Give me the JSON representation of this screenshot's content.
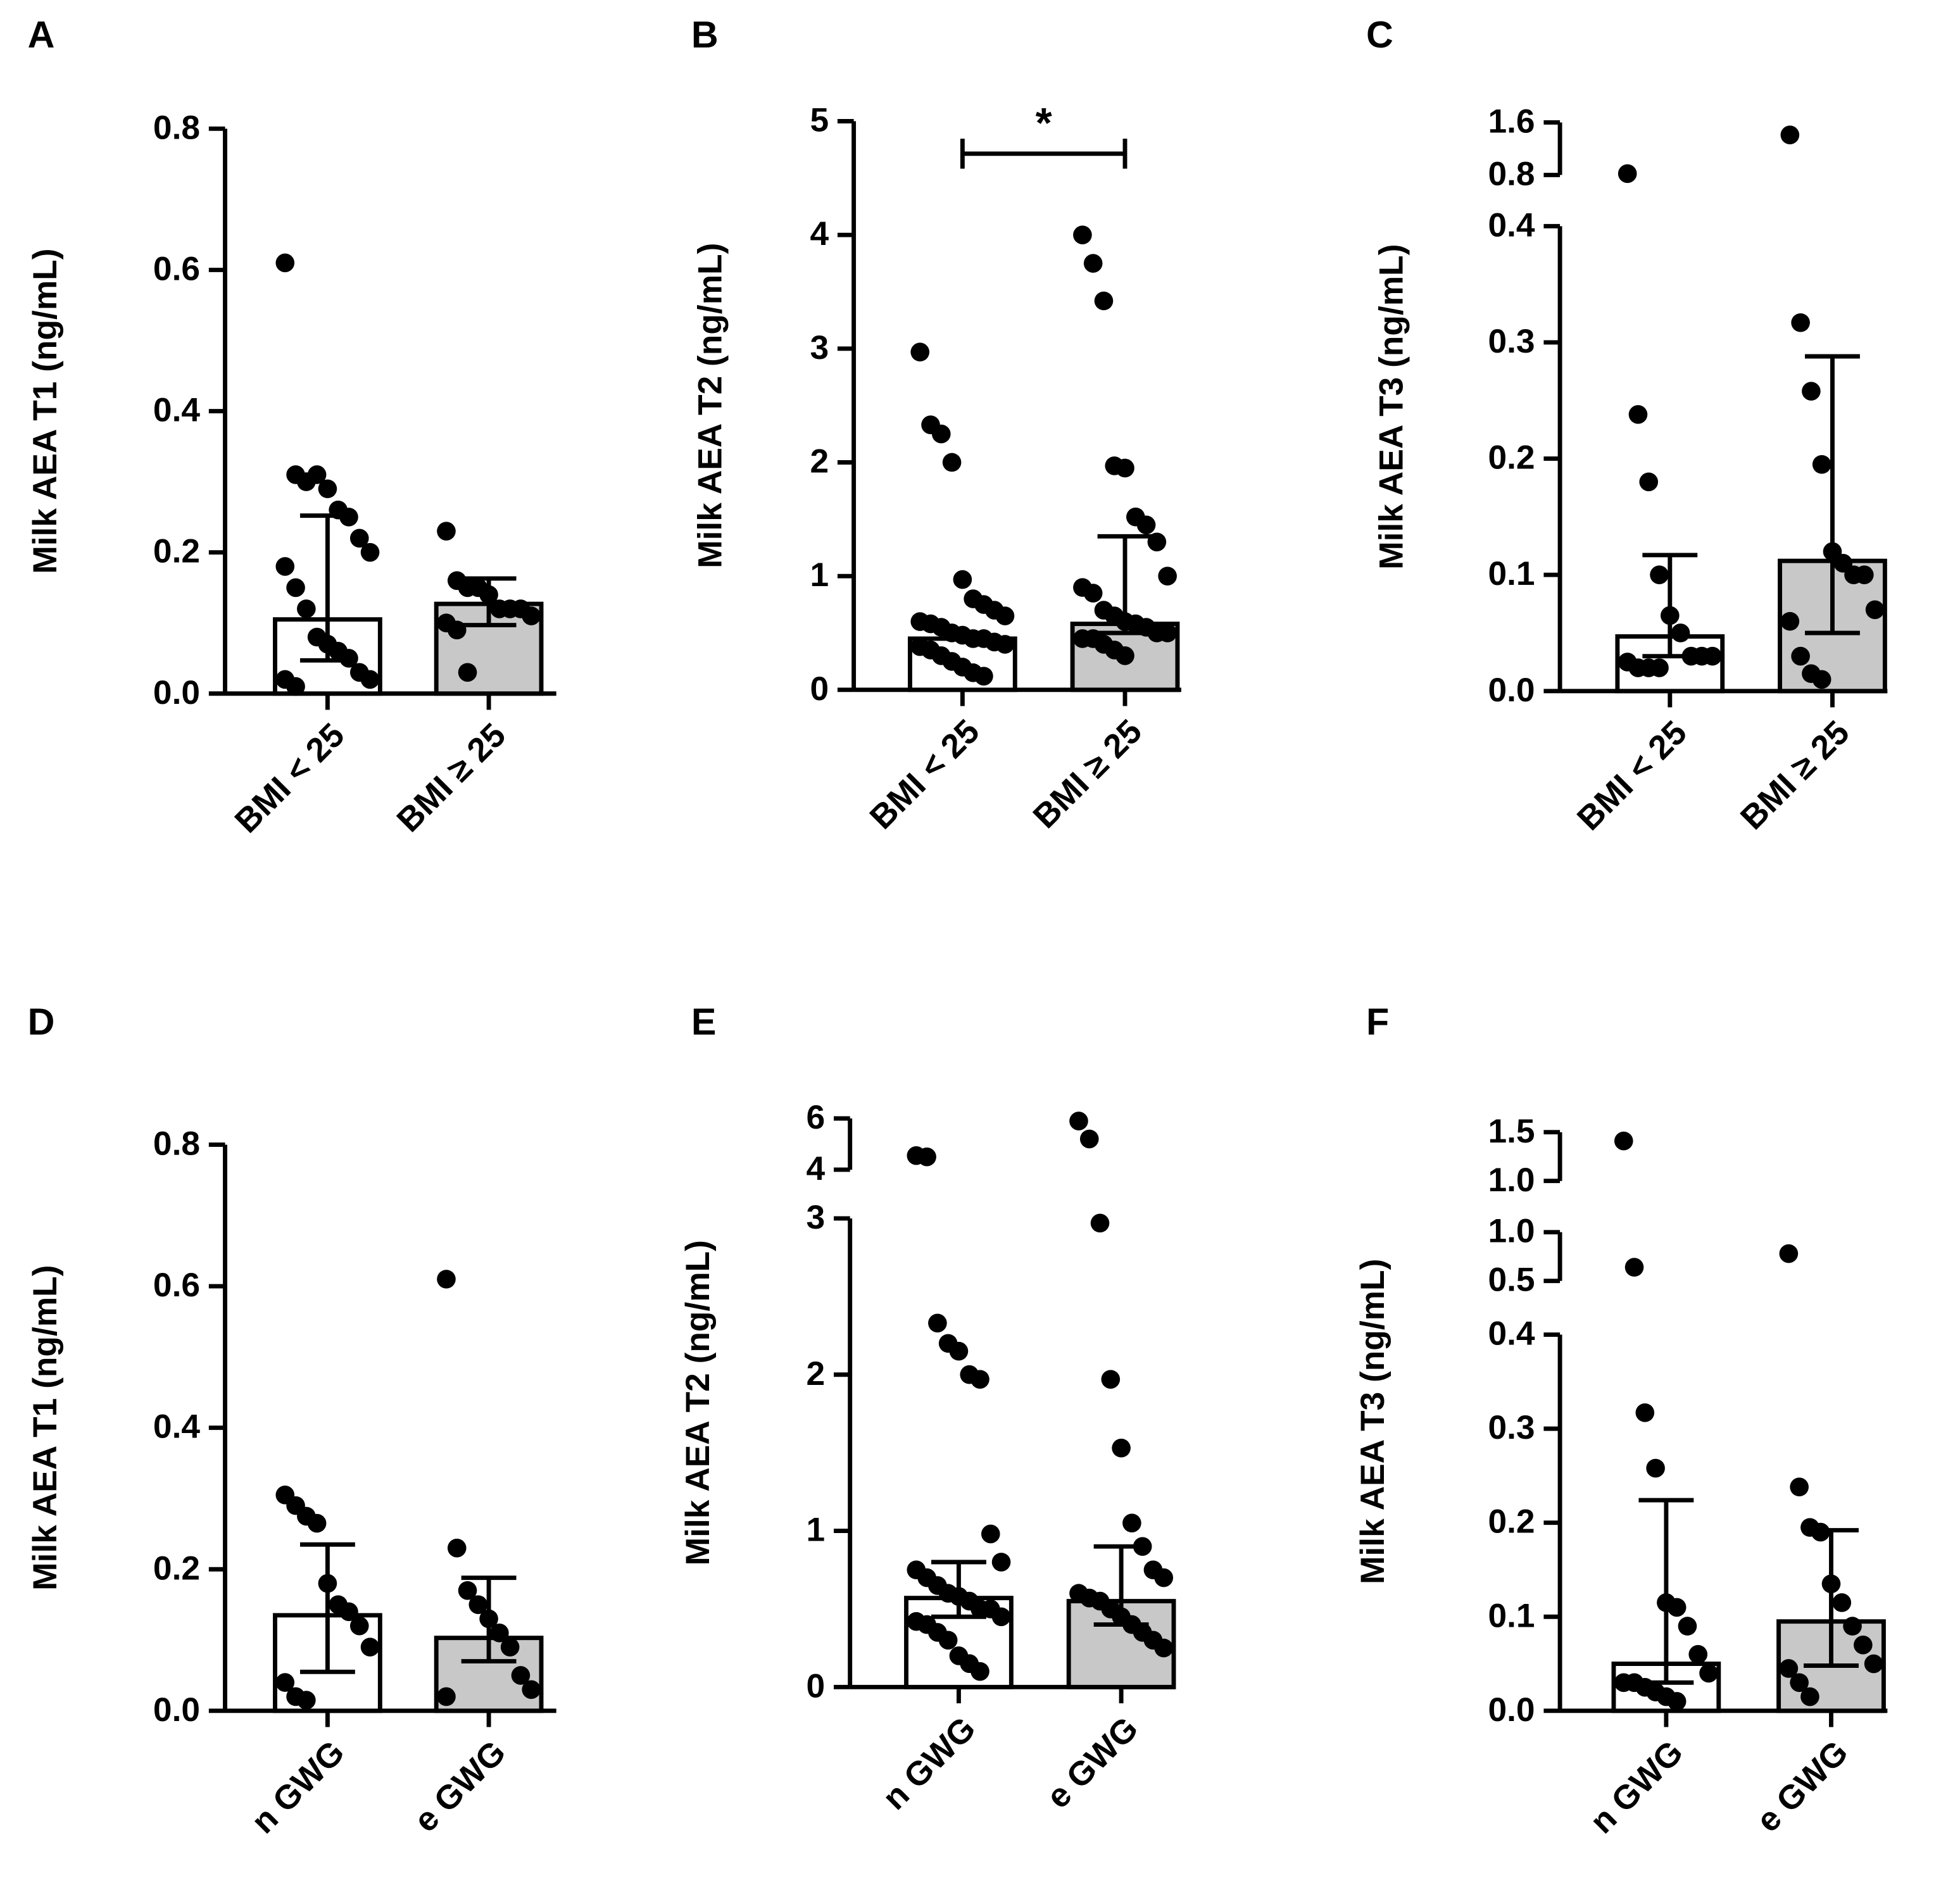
{
  "chart_data": [
    {
      "type": "bar",
      "panel": "A",
      "ylabel": "Milk AEA T1 (ng/mL)",
      "categories": [
        "BMI < 25",
        "BMI ≥ 25"
      ],
      "colors": [
        "#ffffff",
        "#c8c8c8"
      ],
      "values": [
        0.105,
        0.127
      ],
      "error_low": [
        0.047,
        0.097
      ],
      "error_high": [
        0.252,
        0.163
      ],
      "points": [
        [
          0.61,
          0.31,
          0.3,
          0.31,
          0.29,
          0.26,
          0.25,
          0.22,
          0.2,
          0.18,
          0.15,
          0.12,
          0.08,
          0.07,
          0.06,
          0.05,
          0.03,
          0.02,
          0.02,
          0.01
        ],
        [
          0.23,
          0.16,
          0.15,
          0.15,
          0.14,
          0.12,
          0.12,
          0.12,
          0.11,
          0.1,
          0.09,
          0.03
        ]
      ],
      "axis_segments": [
        {
          "ylim": [
            0,
            0.8
          ],
          "yticks": [
            {
              "value": 0,
              "label": "0.0"
            },
            0.2,
            0.4,
            0.6,
            0.8
          ]
        }
      ]
    },
    {
      "type": "bar",
      "panel": "B",
      "ylabel": "Milk AEA T2 (ng/mL)",
      "categories": [
        "BMI < 25",
        "BMI ≥ 25"
      ],
      "colors": [
        "#ffffff",
        "#c8c8c8"
      ],
      "values": [
        0.45,
        0.58
      ],
      "error_low": [
        null,
        0.5
      ],
      "error_high": [
        null,
        1.35
      ],
      "points": [
        [
          2.97,
          2.33,
          2.25,
          2.0,
          0.97,
          0.8,
          0.75,
          0.7,
          0.65,
          0.6,
          0.58,
          0.55,
          0.5,
          0.48,
          0.45,
          0.45,
          0.42,
          0.4,
          0.38,
          0.35,
          0.3,
          0.25,
          0.2,
          0.15,
          0.12
        ],
        [
          4.0,
          3.75,
          3.42,
          1.97,
          1.95,
          1.52,
          1.45,
          1.3,
          1.0,
          0.9,
          0.85,
          0.7,
          0.65,
          0.6,
          0.58,
          0.55,
          0.5,
          0.5,
          0.45,
          0.45,
          0.4,
          0.35,
          0.3
        ]
      ],
      "axis_segments": [
        {
          "ylim": [
            0,
            5
          ],
          "yticks": [
            0,
            1,
            2,
            3,
            4,
            5
          ]
        }
      ],
      "annotations": [
        "*"
      ]
    },
    {
      "type": "bar",
      "panel": "C",
      "ylabel": "Milk AEA T3 (ng/mL)",
      "categories": [
        "BMI < 25",
        "BMI ≥ 25"
      ],
      "colors": [
        "#ffffff",
        "#c8c8c8"
      ],
      "values": [
        0.047,
        0.112
      ],
      "error_low": [
        0.03,
        0.05
      ],
      "error_high": [
        0.117,
        0.288
      ],
      "points": [
        [
          0.82,
          0.238,
          0.18,
          0.1,
          0.065,
          0.05,
          0.03,
          0.03,
          0.03,
          0.025,
          0.02,
          0.02,
          0.02
        ],
        [
          1.41,
          0.317,
          0.258,
          0.195,
          0.12,
          0.11,
          0.1,
          0.1,
          0.07,
          0.06,
          0.03,
          0.015,
          0.01
        ]
      ],
      "axis_segments": [
        {
          "ylim": [
            0,
            0.4
          ],
          "yticks": [
            {
              "value": 0,
              "label": "0.0"
            },
            0.1,
            0.2,
            0.3,
            0.4
          ]
        },
        {
          "ylim": [
            0.8,
            1.6
          ],
          "yticks": [
            0.8,
            1.6
          ]
        }
      ]
    },
    {
      "type": "bar",
      "panel": "D",
      "ylabel": "Milk AEA T1 (ng/mL)",
      "categories": [
        "n GWG",
        "e GWG"
      ],
      "colors": [
        "#ffffff",
        "#c8c8c8"
      ],
      "values": [
        0.135,
        0.103
      ],
      "error_low": [
        0.055,
        0.07
      ],
      "error_high": [
        0.235,
        0.188
      ],
      "points": [
        [
          0.305,
          0.29,
          0.275,
          0.265,
          0.18,
          0.15,
          0.14,
          0.12,
          0.09,
          0.04,
          0.02,
          0.015
        ],
        [
          0.61,
          0.23,
          0.17,
          0.15,
          0.13,
          0.11,
          0.09,
          0.05,
          0.03,
          0.02
        ]
      ],
      "axis_segments": [
        {
          "ylim": [
            0,
            0.8
          ],
          "yticks": [
            {
              "value": 0,
              "label": "0.0"
            },
            0.2,
            0.4,
            0.6,
            0.8
          ]
        }
      ]
    },
    {
      "type": "bar",
      "panel": "E",
      "ylabel": "Milk AEA T2 (ng/mL)",
      "categories": [
        "n GWG",
        "e GWG"
      ],
      "colors": [
        "#ffffff",
        "#c8c8c8"
      ],
      "values": [
        0.57,
        0.55
      ],
      "error_low": [
        0.45,
        0.4
      ],
      "error_high": [
        0.8,
        0.9
      ],
      "points": [
        [
          4.55,
          4.5,
          2.33,
          2.2,
          2.15,
          2.0,
          1.97,
          0.98,
          0.8,
          0.75,
          0.7,
          0.65,
          0.6,
          0.58,
          0.55,
          0.5,
          0.5,
          0.45,
          0.42,
          0.4,
          0.35,
          0.3,
          0.2,
          0.15,
          0.1
        ],
        [
          5.9,
          5.2,
          2.97,
          1.97,
          1.53,
          1.05,
          0.9,
          0.75,
          0.7,
          0.6,
          0.57,
          0.55,
          0.5,
          0.45,
          0.4,
          0.35,
          0.3,
          0.25
        ]
      ],
      "axis_segments": [
        {
          "ylim": [
            0,
            3
          ],
          "yticks": [
            0,
            1,
            2,
            3
          ]
        },
        {
          "ylim": [
            4,
            6
          ],
          "yticks": [
            4,
            6
          ]
        }
      ]
    },
    {
      "type": "bar",
      "panel": "F",
      "ylabel": "Milk AEA T3 (ng/mL)",
      "categories": [
        "n GWG",
        "e GWG"
      ],
      "colors": [
        "#ffffff",
        "#c8c8c8"
      ],
      "values": [
        0.05,
        0.095
      ],
      "error_low": [
        0.03,
        0.048
      ],
      "error_high": [
        0.224,
        0.192
      ],
      "points": [
        [
          1.41,
          0.64,
          0.317,
          0.258,
          0.115,
          0.11,
          0.09,
          0.06,
          0.04,
          0.03,
          0.03,
          0.025,
          0.02,
          0.015,
          0.01
        ],
        [
          0.78,
          0.238,
          0.195,
          0.19,
          0.135,
          0.115,
          0.09,
          0.07,
          0.05,
          0.045,
          0.03,
          0.015
        ]
      ],
      "axis_segments": [
        {
          "ylim": [
            0,
            0.4
          ],
          "yticks": [
            {
              "value": 0,
              "label": "0.0"
            },
            0.1,
            0.2,
            0.3,
            0.4
          ]
        },
        {
          "ylim": [
            0.5,
            1
          ],
          "yticks": [
            0.5,
            {
              "value": 1,
              "label": "1.0"
            }
          ]
        },
        {
          "ylim": [
            1,
            1.5
          ],
          "yticks": [
            {
              "value": 1,
              "label": "1.0"
            },
            1.5
          ]
        }
      ]
    }
  ]
}
